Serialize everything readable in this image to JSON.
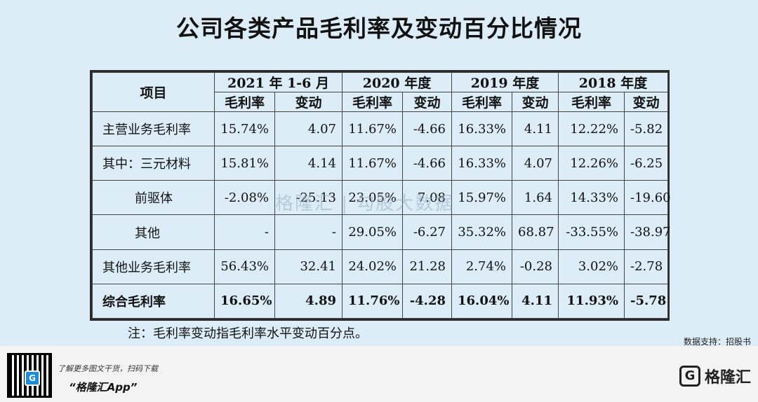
{
  "title": "公司各类产品毛利率及变动百分比情况",
  "table": {
    "item_header": "项目",
    "periods": [
      "2021 年 1-6 月",
      "2020 年度",
      "2019 年度",
      "2018 年度"
    ],
    "sub_headers": [
      "毛利率",
      "变动"
    ],
    "rows": [
      {
        "label": "主营业务毛利率",
        "indent": false,
        "values": [
          "15.74%",
          "4.07",
          "11.67%",
          "-4.66",
          "16.33%",
          "4.11",
          "12.22%",
          "-5.82"
        ]
      },
      {
        "label": "其中：三元材料",
        "indent": false,
        "values": [
          "15.81%",
          "4.14",
          "11.67%",
          "-4.66",
          "16.33%",
          "4.07",
          "12.26%",
          "-6.25"
        ]
      },
      {
        "label": "前驱体",
        "indent": true,
        "values": [
          "-2.08%",
          "-25.13",
          "23.05%",
          "7.08",
          "15.97%",
          "1.64",
          "14.33%",
          "-19.60"
        ]
      },
      {
        "label": "其他",
        "indent": true,
        "values": [
          "-",
          "-",
          "29.05%",
          "-6.27",
          "35.32%",
          "68.87",
          "-33.55%",
          "-38.97"
        ]
      },
      {
        "label": "其他业务毛利率",
        "indent": false,
        "values": [
          "56.43%",
          "32.41",
          "24.02%",
          "21.28",
          "2.74%",
          "-0.28",
          "3.02%",
          "-2.78"
        ]
      },
      {
        "label": "综合毛利率",
        "indent": false,
        "total": true,
        "values": [
          "16.65%",
          "4.89",
          "11.76%",
          "-4.28",
          "16.04%",
          "4.11",
          "11.93%",
          "-5.78"
        ]
      }
    ]
  },
  "watermark": "格隆汇 | 勾股大数据",
  "note": "注：毛利率变动指毛利率水平变动百分点。",
  "source": "数据支持：招股书",
  "footer": {
    "promo_line": "了解更多图文干货，扫码下载",
    "app_name": "“格隆汇App”",
    "logo_mark": "G",
    "logo_text": "格隆汇"
  }
}
